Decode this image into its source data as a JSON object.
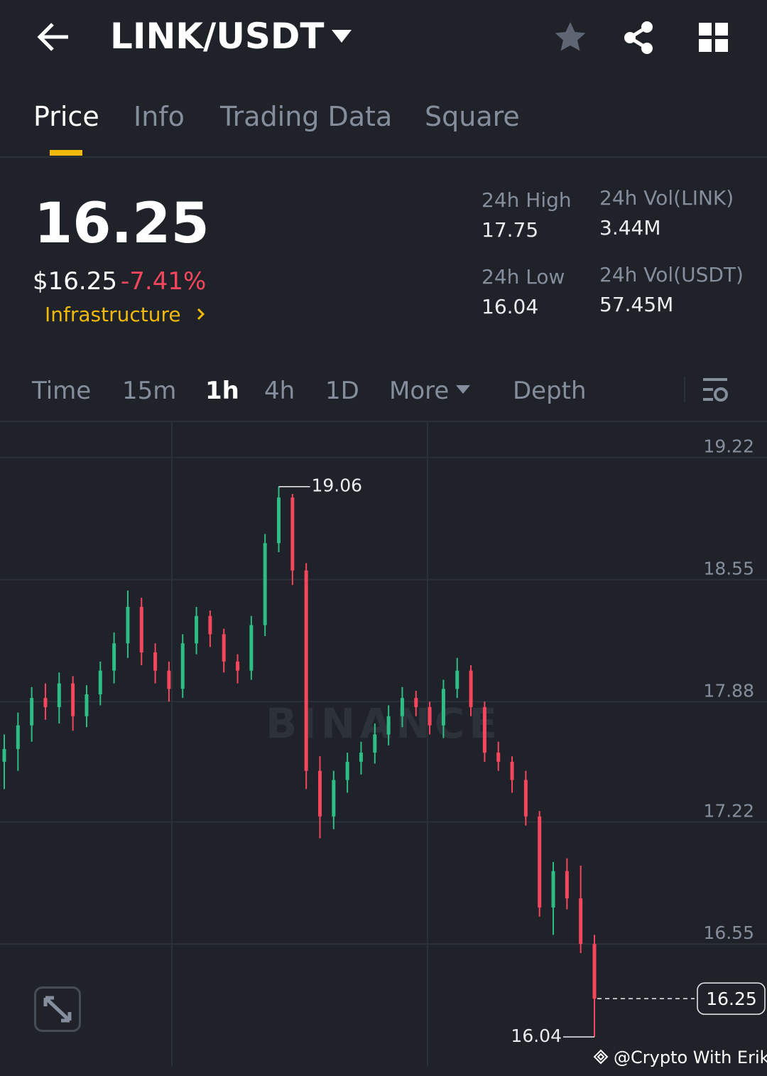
{
  "header": {
    "pair": "LINK/USDT"
  },
  "tabs": [
    "Price",
    "Info",
    "Trading Data",
    "Square"
  ],
  "summary": {
    "price": "16.25",
    "usd_price": "$16.25",
    "change": "-7.41%",
    "sector": "Infrastructure",
    "high_label": "24h High",
    "high": "17.75",
    "low_label": "24h Low",
    "low": "16.04",
    "vol_link_label": "24h Vol(LINK)",
    "vol_link": "3.44M",
    "vol_usdt_label": "24h Vol(USDT)",
    "vol_usdt": "57.45M"
  },
  "intervals": [
    "Time",
    "15m",
    "1h",
    "4h",
    "1D",
    "More",
    "Depth"
  ],
  "chart_data": {
    "type": "candlestick",
    "watermark": "BINANCE",
    "credit": "@Crypto With Erik",
    "up_color": "#2ebd85",
    "down_color": "#f6465d",
    "ylim": [
      15.88,
      19.41
    ],
    "yticks": [
      19.22,
      18.55,
      17.88,
      17.22,
      16.55
    ],
    "grid": true,
    "max_label": 19.06,
    "min_label": 16.04,
    "last_price": 16.25,
    "open": [
      17.55,
      17.62,
      17.75,
      17.9,
      17.85,
      17.98,
      17.8,
      17.92,
      18.05,
      18.2,
      18.4,
      18.15,
      18.05,
      17.95,
      18.2,
      18.35,
      18.25,
      18.1,
      18.05,
      18.3,
      18.75,
      19.0,
      18.6,
      17.5,
      17.25,
      17.45,
      17.55,
      17.6,
      17.7,
      17.8,
      17.9,
      17.85,
      17.75,
      17.95,
      18.05,
      17.85,
      17.6,
      17.55,
      17.45,
      17.25,
      16.75,
      16.95,
      16.8,
      16.55
    ],
    "high": [
      17.7,
      17.82,
      17.96,
      17.98,
      18.04,
      18.02,
      17.97,
      18.1,
      18.26,
      18.49,
      18.45,
      18.2,
      18.1,
      18.25,
      18.4,
      18.38,
      18.28,
      18.14,
      18.35,
      18.8,
      19.06,
      19.02,
      18.64,
      17.58,
      17.5,
      17.6,
      17.66,
      17.76,
      17.86,
      17.96,
      17.94,
      17.88,
      18.0,
      18.12,
      18.08,
      17.88,
      17.66,
      17.58,
      17.5,
      17.28,
      17.0,
      17.02,
      16.98,
      16.6
    ],
    "low": [
      17.4,
      17.5,
      17.66,
      17.78,
      17.76,
      17.72,
      17.74,
      17.86,
      17.98,
      18.12,
      18.08,
      17.98,
      17.88,
      17.9,
      18.14,
      18.18,
      18.04,
      17.98,
      18.0,
      18.24,
      18.7,
      18.52,
      17.4,
      17.13,
      17.18,
      17.38,
      17.48,
      17.54,
      17.64,
      17.74,
      17.8,
      17.7,
      17.68,
      17.9,
      17.8,
      17.55,
      17.5,
      17.38,
      17.2,
      16.7,
      16.6,
      16.74,
      16.5,
      16.04
    ],
    "close": [
      17.62,
      17.75,
      17.9,
      17.85,
      17.98,
      17.8,
      17.92,
      18.05,
      18.2,
      18.4,
      18.15,
      18.05,
      17.95,
      18.2,
      18.35,
      18.25,
      18.1,
      18.05,
      18.3,
      18.75,
      19.0,
      18.6,
      17.5,
      17.25,
      17.45,
      17.55,
      17.6,
      17.7,
      17.8,
      17.9,
      17.85,
      17.75,
      17.95,
      18.05,
      17.85,
      17.6,
      17.55,
      17.45,
      17.25,
      16.75,
      16.95,
      16.8,
      16.55,
      16.25
    ]
  }
}
